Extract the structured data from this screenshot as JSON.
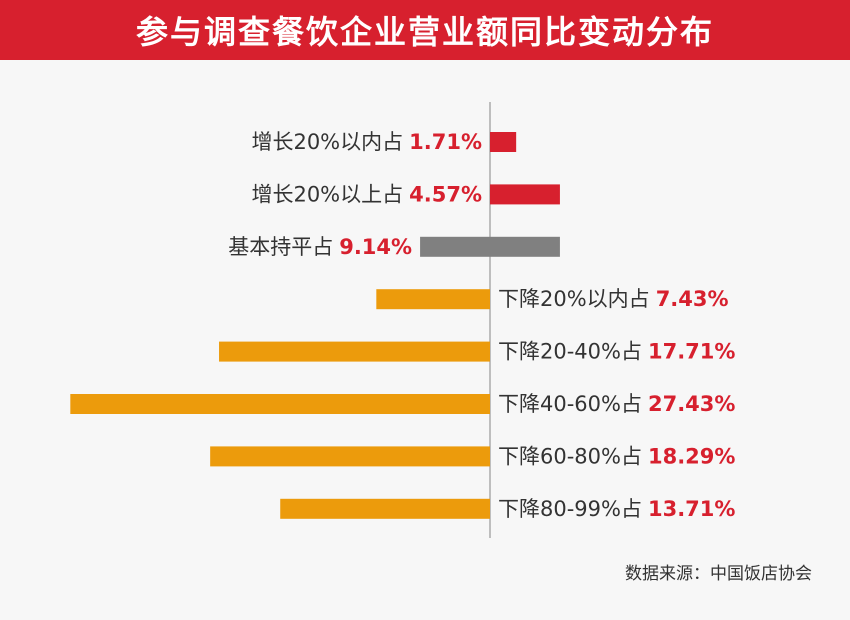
{
  "title": "参与调查餐饮企业营业额同比变动分布",
  "source": "数据来源：中国饭店协会",
  "colors": {
    "increase": "#d7202e",
    "flat": "#808080",
    "decrease": "#ec9b0c",
    "value_text": "#d7202e",
    "label_text": "#333333",
    "axis": "#999999"
  },
  "chart_data": {
    "type": "bar",
    "orientation": "horizontal-diverging",
    "categories": [
      "增长20%以内占",
      "增长20%以上占",
      "基本持平占",
      "下降20%以内占",
      "下降20-40%占",
      "下降40-60%占",
      "下降60-80%占",
      "下降80-99%占"
    ],
    "values": [
      1.71,
      4.57,
      9.14,
      7.43,
      17.71,
      27.43,
      18.29,
      13.71
    ],
    "value_labels": [
      "1.71%",
      "4.57%",
      "9.14%",
      "7.43%",
      "17.71%",
      "27.43%",
      "18.29%",
      "13.71%"
    ],
    "groups": [
      "increase",
      "increase",
      "flat",
      "decrease",
      "decrease",
      "decrease",
      "decrease",
      "decrease"
    ],
    "xlabel": "",
    "ylabel": "",
    "grid": false,
    "legend": "none"
  }
}
